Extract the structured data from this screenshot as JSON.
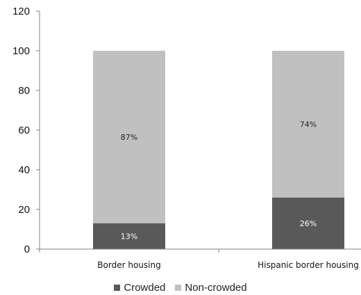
{
  "chart_data": {
    "type": "bar",
    "stacked": true,
    "categories": [
      "Border housing",
      "Hispanic border housing"
    ],
    "series": [
      {
        "name": "Crowded",
        "values": [
          13,
          26
        ],
        "labels": [
          "13%",
          "26%"
        ],
        "color": "#595959",
        "label_color": "#ffffff"
      },
      {
        "name": "Non-crowded",
        "values": [
          87,
          74
        ],
        "labels": [
          "87%",
          "74%"
        ],
        "color": "#c0c0c0",
        "label_color": "#222222"
      }
    ],
    "ylim": [
      0,
      120
    ],
    "yticks": [
      0,
      20,
      40,
      60,
      80,
      100,
      120
    ],
    "grid": false,
    "legend_position": "bottom"
  }
}
